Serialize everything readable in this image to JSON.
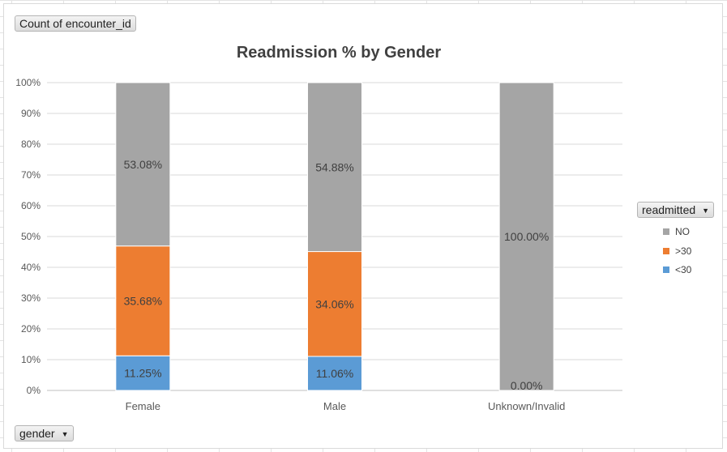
{
  "chart_data": {
    "type": "bar",
    "stacked": true,
    "title": "Readmission % by Gender",
    "categories": [
      "Female",
      "Male",
      "Unknown/Invalid"
    ],
    "series": [
      {
        "name": "<30",
        "values": [
          11.25,
          11.06,
          0.0
        ],
        "labels": [
          "11.25%",
          "11.06%",
          "0.00%"
        ],
        "color": "#5b9bd5"
      },
      {
        "name": ">30",
        "values": [
          35.68,
          34.06,
          0.0
        ],
        "labels": [
          "35.68%",
          "34.06%",
          ""
        ],
        "color": "#ed7d31"
      },
      {
        "name": "NO",
        "values": [
          53.08,
          54.88,
          100.0
        ],
        "labels": [
          "53.08%",
          "54.88%",
          "100.00%"
        ],
        "color": "#a5a5a5"
      }
    ],
    "ylim": [
      0,
      100
    ],
    "yticks": [
      "0%",
      "10%",
      "20%",
      "30%",
      "40%",
      "50%",
      "60%",
      "70%",
      "80%",
      "90%",
      "100%"
    ],
    "grid": true,
    "legend_position": "right"
  },
  "pivot": {
    "values_field": "Count of encounter_id",
    "legend_field": "readmitted",
    "axis_field": "gender",
    "dropdown_icon": "dropdown-arrow-icon"
  },
  "legend_items": [
    {
      "label": "NO",
      "color": "#a5a5a5"
    },
    {
      "label": ">30",
      "color": "#ed7d31"
    },
    {
      "label": "<30",
      "color": "#5b9bd5"
    }
  ]
}
